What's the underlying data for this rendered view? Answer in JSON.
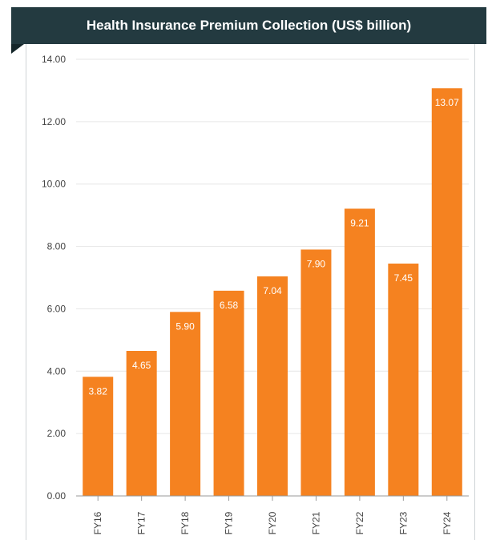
{
  "chart_data": {
    "type": "bar",
    "title": "Health Insurance Premium Collection (US$ billion)",
    "categories": [
      "FY16",
      "FY17",
      "FY18",
      "FY19",
      "FY20",
      "FY21",
      "FY22",
      "FY23",
      "FY24"
    ],
    "values": [
      3.82,
      4.65,
      5.9,
      6.58,
      7.04,
      7.9,
      9.21,
      7.45,
      13.07
    ],
    "value_labels": [
      "3.82",
      "4.65",
      "5.90",
      "6.58",
      "7.04",
      "7.90",
      "9.21",
      "7.45",
      "13.07"
    ],
    "xlabel": "",
    "ylabel": "",
    "ylim": [
      0,
      14
    ],
    "yticks": [
      "0.00",
      "2.00",
      "4.00",
      "6.00",
      "8.00",
      "10.00",
      "12.00",
      "14.00"
    ],
    "grid": true,
    "legend": "none",
    "colors": {
      "bar": "#f58220",
      "header_bg": "#233a40",
      "header_text": "#ffffff",
      "grid": "#e6e6e6",
      "axis": "#999999"
    }
  }
}
